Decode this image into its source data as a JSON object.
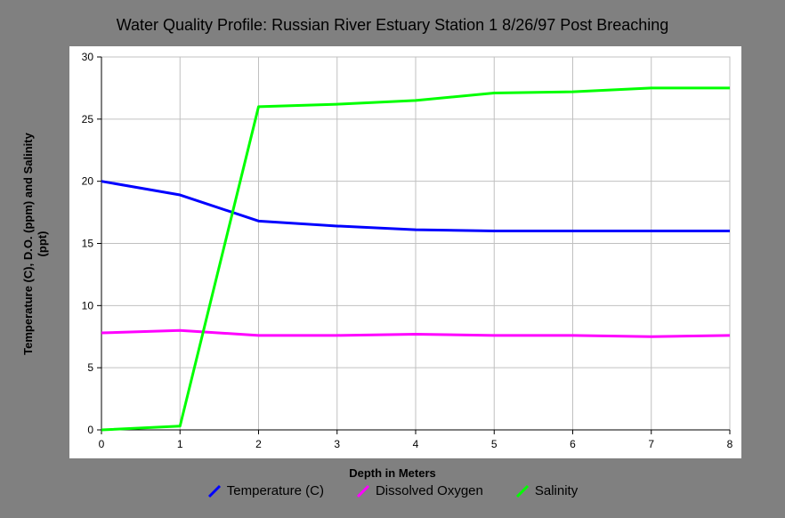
{
  "chart_data": {
    "type": "line",
    "title": "Water Quality Profile: Russian River Estuary Station 1 8/26/97 Post Breaching",
    "xlabel": "Depth in Meters",
    "ylabel": "Temperature (C), D.O. (ppm) and Salinity (ppt)",
    "xlim": [
      0,
      8
    ],
    "ylim": [
      0,
      30
    ],
    "xticks": [
      "0",
      "1",
      "2",
      "3",
      "4",
      "5",
      "6",
      "7",
      "8"
    ],
    "yticks": [
      "0",
      "5",
      "10",
      "15",
      "20",
      "25",
      "30"
    ],
    "grid": true,
    "legend_position": "bottom",
    "series": [
      {
        "name": "Temperature (C)",
        "color": "#0000ff",
        "x": [
          0,
          1,
          2,
          3,
          4,
          5,
          6,
          7,
          8
        ],
        "y": [
          20.0,
          18.9,
          16.8,
          16.4,
          16.1,
          16.0,
          16.0,
          16.0,
          16.0
        ]
      },
      {
        "name": "Dissolved Oxygen",
        "color": "#ff00ff",
        "x": [
          0,
          1,
          2,
          3,
          4,
          5,
          6,
          7,
          8
        ],
        "y": [
          7.8,
          8.0,
          7.6,
          7.6,
          7.7,
          7.6,
          7.6,
          7.5,
          7.6
        ]
      },
      {
        "name": "Salinity",
        "color": "#00ff00",
        "x": [
          0,
          1,
          2,
          3,
          4,
          5,
          6,
          7,
          8
        ],
        "y": [
          0.0,
          0.3,
          26.0,
          26.2,
          26.5,
          27.1,
          27.2,
          27.5,
          27.5
        ]
      }
    ]
  }
}
